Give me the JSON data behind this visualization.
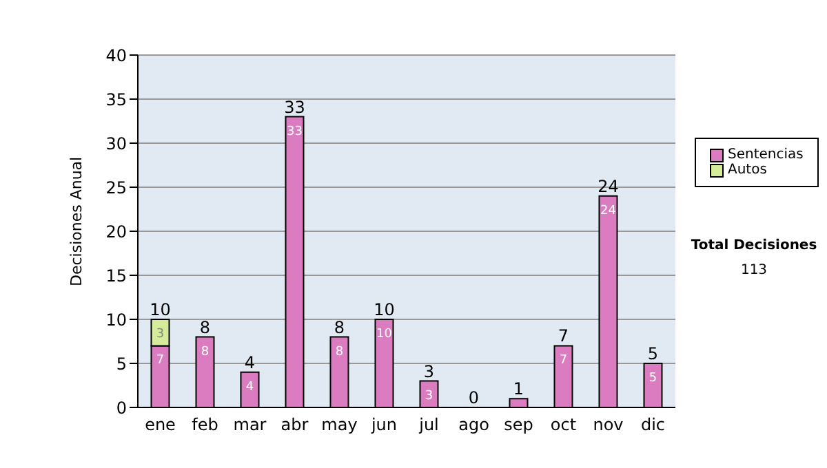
{
  "chart_data": {
    "type": "bar",
    "ylabel": "Decisiones Anual",
    "categories": [
      "ene",
      "feb",
      "mar",
      "abr",
      "may",
      "jun",
      "jul",
      "ago",
      "sep",
      "oct",
      "nov",
      "dic"
    ],
    "series": [
      {
        "name": "Sentencias",
        "color": "#dc7cc0",
        "values": [
          7,
          8,
          4,
          33,
          8,
          10,
          3,
          0,
          1,
          7,
          24,
          5
        ],
        "value_labels": [
          "7",
          "8",
          "4",
          "33",
          "8",
          "10",
          "3",
          null,
          null,
          "7",
          "24",
          "5"
        ]
      },
      {
        "name": "Autos",
        "color": "#d6ec9a",
        "values": [
          3,
          0,
          0,
          0,
          0,
          0,
          0,
          0,
          0,
          0,
          0,
          0
        ],
        "value_labels": [
          "3",
          null,
          null,
          null,
          null,
          null,
          null,
          null,
          null,
          null,
          null,
          null
        ]
      }
    ],
    "stacked": true,
    "totals": [
      "10",
      "8",
      "4",
      "33",
      "8",
      "10",
      "3",
      "0",
      "1",
      "7",
      "24",
      "5"
    ],
    "ylim": [
      0,
      40
    ],
    "yticks": [
      0,
      5,
      10,
      15,
      20,
      25,
      30,
      35,
      40
    ],
    "grid": "y",
    "legend": "right",
    "annotations": [
      "Total Decisiones",
      "113"
    ]
  }
}
